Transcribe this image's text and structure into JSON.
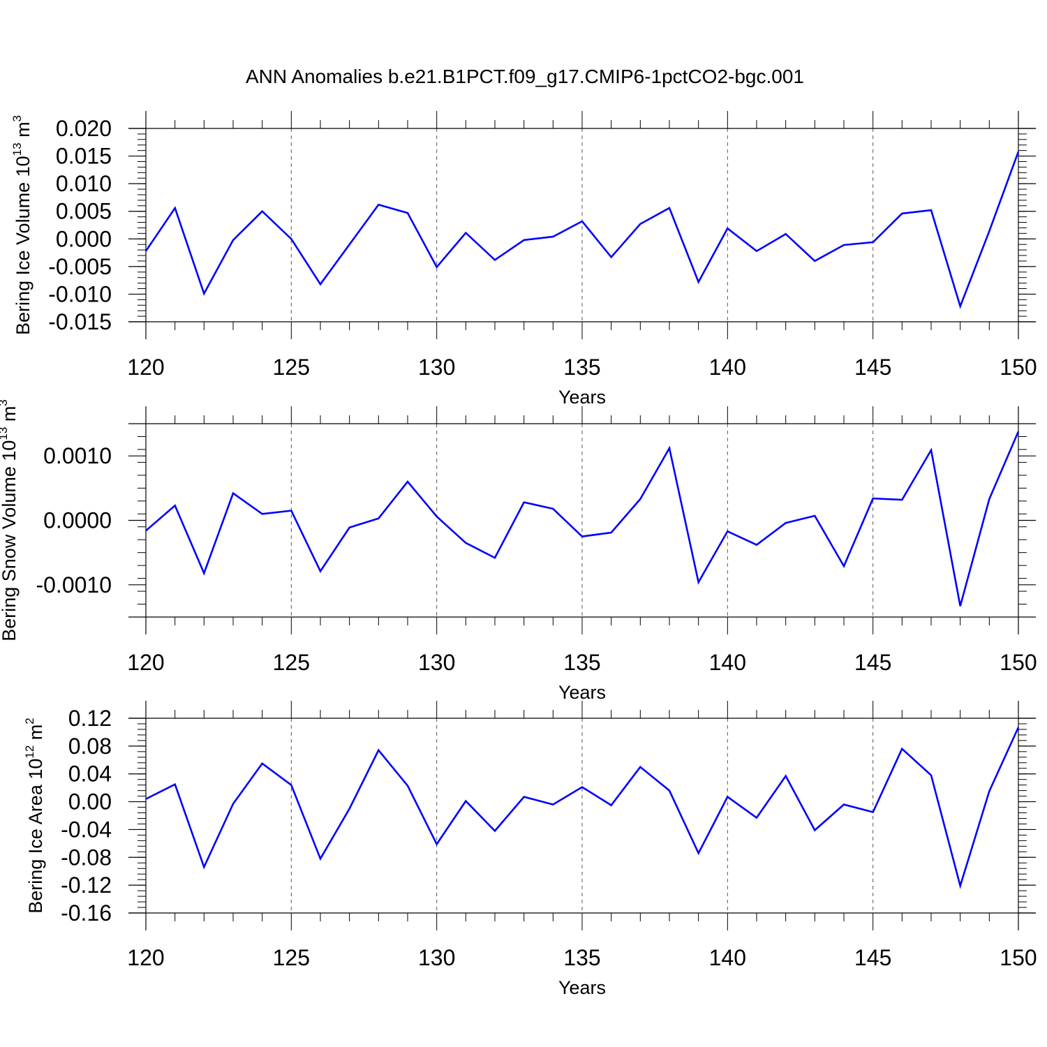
{
  "title": "ANN Anomalies b.e21.B1PCT.f09_g17.CMIP6-1pctCO2-bgc.001",
  "series_color": "#0000ff",
  "chart_data": [
    {
      "type": "line",
      "xlabel": "Years",
      "ylabel": {
        "prefix": "Bering Ice Volume 10",
        "exp": "13",
        "unit": " m",
        "unit_exp": "3"
      },
      "xlim": [
        120,
        150
      ],
      "ylim": [
        -0.015,
        0.02
      ],
      "x_ticks": [
        "120",
        "125",
        "130",
        "135",
        "140",
        "145",
        "150"
      ],
      "y_ticks": [
        "0.020",
        "0.015",
        "0.010",
        "0.005",
        "0.000",
        "-0.005",
        "-0.010",
        "-0.015"
      ],
      "grid": "dashed vertical at major x ticks",
      "x": [
        120,
        121,
        122,
        123,
        124,
        125,
        126,
        127,
        128,
        129,
        130,
        131,
        132,
        133,
        134,
        135,
        136,
        137,
        138,
        139,
        140,
        141,
        142,
        143,
        144,
        145,
        146,
        147,
        148,
        149,
        150
      ],
      "values": [
        -0.0022,
        0.0056,
        -0.0099,
        -0.0002,
        0.005,
        0.0,
        -0.0082,
        -0.001,
        0.0062,
        0.0047,
        -0.0051,
        0.0011,
        -0.0038,
        -0.0002,
        0.0004,
        0.0032,
        -0.0033,
        0.0027,
        0.0056,
        -0.0078,
        0.0019,
        -0.0022,
        0.0009,
        -0.004,
        -0.0011,
        -0.0006,
        0.0046,
        0.0052,
        -0.0122,
        0.0014,
        0.0158
      ]
    },
    {
      "type": "line",
      "xlabel": "Years",
      "ylabel": {
        "prefix": "Bering Snow Volume 10",
        "exp": "13",
        "unit": " m",
        "unit_exp": "3"
      },
      "xlim": [
        120,
        150
      ],
      "ylim": [
        -0.0015,
        0.0015
      ],
      "x_ticks": [
        "120",
        "125",
        "130",
        "135",
        "140",
        "145",
        "150"
      ],
      "y_ticks": [
        "0.0010",
        "0.0000",
        "-0.0010"
      ],
      "grid": "dashed vertical at major x ticks",
      "x": [
        120,
        121,
        122,
        123,
        124,
        125,
        126,
        127,
        128,
        129,
        130,
        131,
        132,
        133,
        134,
        135,
        136,
        137,
        138,
        139,
        140,
        141,
        142,
        143,
        144,
        145,
        146,
        147,
        148,
        149,
        150
      ],
      "values": [
        -0.00016,
        0.00023,
        -0.00082,
        0.00042,
        0.0001,
        0.00015,
        -0.00079,
        -0.00011,
        3e-05,
        0.0006,
        6e-05,
        -0.00035,
        -0.00058,
        0.00028,
        0.00018,
        -0.00025,
        -0.00019,
        0.00033,
        0.00112,
        -0.00096,
        -0.00017,
        -0.00038,
        -4e-05,
        7e-05,
        -0.00071,
        0.00034,
        0.00032,
        0.00109,
        -0.00133,
        0.00033,
        0.00138
      ]
    },
    {
      "type": "line",
      "xlabel": "Years",
      "ylabel": {
        "prefix": "Bering Ice Area 10",
        "exp": "12",
        "unit": " m",
        "unit_exp": "2"
      },
      "xlim": [
        120,
        150
      ],
      "ylim": [
        -0.16,
        0.12
      ],
      "x_ticks": [
        "120",
        "125",
        "130",
        "135",
        "140",
        "145",
        "150"
      ],
      "y_ticks": [
        "0.12",
        "0.08",
        "0.04",
        "0.00",
        "-0.04",
        "-0.08",
        "-0.12",
        "-0.16"
      ],
      "grid": "dashed vertical at major x ticks",
      "x": [
        120,
        121,
        122,
        123,
        124,
        125,
        126,
        127,
        128,
        129,
        130,
        131,
        132,
        133,
        134,
        135,
        136,
        137,
        138,
        139,
        140,
        141,
        142,
        143,
        144,
        145,
        146,
        147,
        148,
        149,
        150
      ],
      "values": [
        0.004,
        0.025,
        -0.094,
        -0.003,
        0.055,
        0.024,
        -0.082,
        -0.01,
        0.074,
        0.023,
        -0.061,
        0.001,
        -0.042,
        0.007,
        -0.004,
        0.021,
        -0.005,
        0.05,
        0.016,
        -0.074,
        0.007,
        -0.023,
        0.037,
        -0.041,
        -0.004,
        -0.015,
        0.076,
        0.038,
        -0.121,
        0.015,
        0.107
      ]
    }
  ]
}
